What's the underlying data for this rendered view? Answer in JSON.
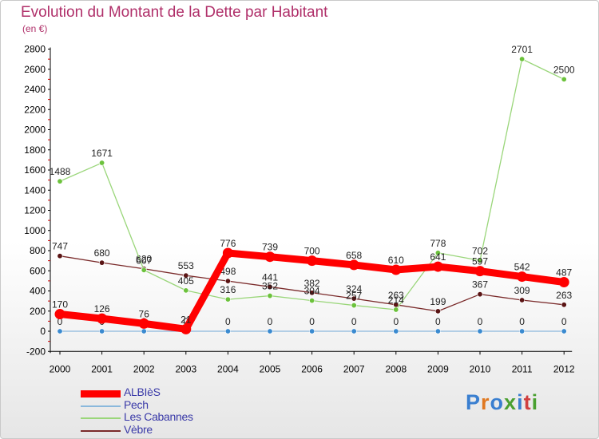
{
  "title": "Evolution du Montant de la Dette par Habitant",
  "subtitle": "(en €)",
  "logo": {
    "text": "Proxiti",
    "colors": [
      "#3a7fd0",
      "#e07820",
      "#3a7fd0",
      "#4aa030",
      "#3a7fd0",
      "#d04040",
      "#4aa030"
    ]
  },
  "chart_data": {
    "type": "line",
    "title": "Evolution du Montant de la Dette par Habitant",
    "subtitle": "(en €)",
    "xlabel": "",
    "ylabel": "",
    "categories": [
      "2000",
      "2001",
      "2002",
      "2003",
      "2004",
      "2005",
      "2006",
      "2007",
      "2008",
      "2009",
      "2010",
      "2011",
      "2012"
    ],
    "ylim": [
      -200,
      2800
    ],
    "yticks": [
      -200,
      0,
      200,
      400,
      600,
      800,
      1000,
      1200,
      1400,
      1600,
      1800,
      2000,
      2200,
      2400,
      2600,
      2800
    ],
    "grid": false,
    "legend_position": "bottom-left",
    "series": [
      {
        "name": "Vèbre",
        "color": "#7a2a2a",
        "marker": "#5a1414",
        "values": [
          747,
          680,
          620,
          553,
          498,
          441,
          382,
          324,
          263,
          199,
          367,
          309,
          263
        ],
        "labels": [
          "747",
          "680",
          "620",
          "553",
          "498",
          "441",
          "382",
          "324",
          "263",
          "199",
          "367",
          "309",
          "263"
        ]
      },
      {
        "name": "Les Cabannes",
        "color": "#9ad67a",
        "marker": "#6cc23c",
        "values": [
          1488,
          1671,
          607,
          405,
          316,
          352,
          304,
          257,
          214,
          778,
          702,
          2701,
          2500
        ],
        "labels": [
          "1488",
          "1671",
          "607",
          "405",
          "316",
          "352",
          "304",
          "257",
          "214",
          "778",
          "702",
          "2701",
          "2500"
        ]
      },
      {
        "name": "Pech",
        "color": "#8ab8dc",
        "marker": "#3a8ad0",
        "values": [
          0,
          0,
          0,
          0,
          0,
          0,
          0,
          0,
          0,
          0,
          0,
          0,
          0
        ],
        "labels": [
          "0",
          "0",
          "0",
          "0",
          "0",
          "0",
          "0",
          "0",
          "0",
          "0",
          "0",
          "0",
          "0"
        ]
      },
      {
        "name": "ALBIèS",
        "color": "#ff0000",
        "marker": "#ff0000",
        "values": [
          170,
          126,
          76,
          21,
          776,
          739,
          700,
          658,
          610,
          641,
          597,
          542,
          487
        ],
        "labels": [
          "170",
          "126",
          "76",
          "21",
          "776",
          "739",
          "700",
          "658",
          "610",
          "641",
          "597",
          "542",
          "487"
        ]
      }
    ],
    "legend_order": [
      "ALBIèS",
      "Pech",
      "Les Cabannes",
      "Vèbre"
    ]
  }
}
